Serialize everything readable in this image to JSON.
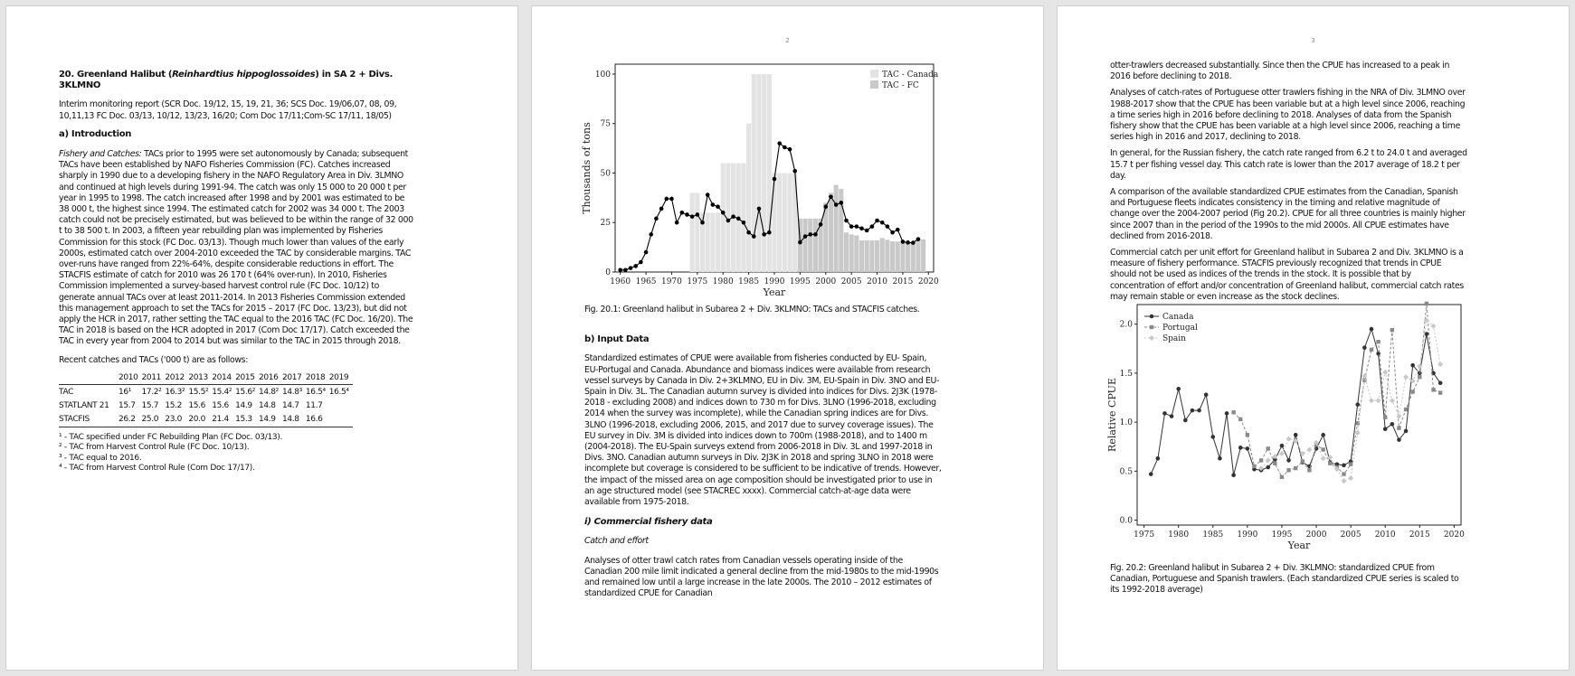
{
  "page1": {
    "title_prefix": "20. Greenland Halibut (",
    "title_species": "Reinhardtius hippoglossoides",
    "title_suffix": ") in SA 2 + Divs. 3KLMNO",
    "report_ref": "Interim monitoring report (SCR Doc. 19/12, 15, 19, 21, 36; SCS Doc. 19/06,07, 08, 09, 10,11,13 FC Doc. 03/13, 10/12, 13/23, 16/20; Com Doc 17/11;Com-SC 17/11, 18/05)",
    "intro_heading": "a) Introduction",
    "fishery_label": "Fishery and Catches:",
    "fishery_text": " TACs prior to 1995 were set autonomously by Canada; subsequent TACs have been established by NAFO Fisheries Commission (FC). Catches increased sharply in 1990 due to a developing fishery in the NAFO Regulatory Area in Div. 3LMNO and continued at high levels during 1991-94. The catch was only 15 000 to 20 000 t per year in 1995 to 1998. The catch increased after 1998 and by 2001 was estimated to be 38 000 t, the highest since 1994. The estimated catch for 2002 was 34 000 t. The 2003 catch could not be precisely estimated, but was believed to be within the range of 32 000 t to 38 500 t. In 2003, a fifteen year rebuilding plan was implemented by Fisheries Commission for this stock (FC Doc. 03/13). Though much lower than values of the early 2000s, estimated catch over 2004-2010 exceeded the TAC by considerable margins. TAC over-runs have ranged from 22%-64%, despite considerable reductions in effort. The STACFIS estimate of catch for 2010 was 26 170 t (64% over-run). In 2010, Fisheries Commission implemented a survey-based harvest control rule (FC Doc. 10/12) to generate annual TACs over at least 2011-2014. In 2013 Fisheries Commission extended this management approach to set the TACs for 2015 – 2017 (FC Doc. 13/23), but did not apply the HCR in 2017, rather setting the TAC equal to the 2016 TAC (FC Doc. 16/20). The TAC in 2018 is based on the HCR adopted in 2017 (Com Doc 17/17). Catch exceeded the TAC in every year from 2004 to 2014 but was similar to the TAC in 2015 through 2018.",
    "recent_label": "Recent catches and TACs ('000 t) are as follows:",
    "table": {
      "headers": [
        "",
        "2010",
        "2011",
        "2012",
        "2013",
        "2014",
        "2015",
        "2016",
        "2017",
        "2018",
        "2019"
      ],
      "rows": [
        [
          "TAC",
          "16¹",
          "17.2²",
          "16.3²",
          "15.5²",
          "15.4²",
          "15.6²",
          "14.8²",
          "14.8³",
          "16.5⁴",
          "16.5⁴"
        ],
        [
          "STATLANT 21",
          "15.7",
          "15.7",
          "15.2",
          "15.6",
          "15.6",
          "14.9",
          "14.8",
          "14.7",
          "11.7",
          ""
        ],
        [
          "STACFIS",
          "26.2",
          "25.0",
          "23.0",
          "20.0",
          "21.4",
          "15.3",
          "14.9",
          "14.8",
          "16.6",
          ""
        ]
      ]
    },
    "footnotes": [
      "¹ - TAC specified under FC Rebuilding Plan (FC Doc. 03/13).",
      "² - TAC from Harvest Control Rule (FC Doc. 10/13).",
      "³ - TAC equal to 2016.",
      "⁴ - TAC from Harvest Control Rule (Com Doc 17/17)."
    ]
  },
  "page2": {
    "page_number": "2",
    "fig1_caption": "Fig. 20.1: Greenland halibut in Subarea 2 + Div. 3KLMNO: TACs and STACFIS catches.",
    "input_heading": "b) Input Data",
    "input_text": "Standardized estimates of CPUE were available from fisheries conducted by EU- Spain, EU-Portugal and Canada. Abundance and biomass indices were available from research vessel surveys by Canada in Div. 2+3KLMNO, EU in Div. 3M, EU-Spain in Div. 3NO and EU-Spain in Div. 3L. The Canadian autumn survey is divided into indices for Divs. 2J3K (1978-2018 - excluding 2008) and indices down to 730 m for Divs. 3LNO (1996-2018, excluding 2014 when the survey was incomplete), while the Canadian spring indices are for Divs. 3LNO (1996-2018, excluding 2006, 2015, and 2017 due to survey coverage issues). The EU survey in Div. 3M is divided into indices down to 700m (1988-2018), and to 1400 m (2004-2018). The EU-Spain surveys extend from 2006-2018 in Div. 3L and 1997-2018 in Divs. 3NO. Canadian autumn surveys in Div. 2J3K in 2018 and spring 3LNO in 2018 were incomplete but coverage is considered to be sufficient to be indicative of trends. However, the impact of the missed area on age composition should be investigated prior to use in an age structured model (see STACREC xxxx). Commercial catch-at-age data were available from 1975-2018.",
    "commercial_heading": "i) Commercial fishery data",
    "catch_effort_heading": "Catch and effort",
    "catch_effort_text": "Analyses of otter trawl catch rates from Canadian vessels operating inside of the Canadian 200 mile limit indicated a general decline from the mid-1980s to the mid-1990s and remained low until a large increase in the late 2000s. The 2010 – 2012 estimates of standardized CPUE for Canadian"
  },
  "page3": {
    "page_number": "3",
    "para1": "otter-trawlers decreased substantially. Since then the CPUE has increased to a peak in 2016 before declining to 2018.",
    "para2": "Analyses of catch-rates of Portuguese otter trawlers fishing in the NRA of Div. 3LMNO over 1988-2017 show that the CPUE has been variable but at a high level since 2006, reaching a time series high in 2016 before declining to 2018. Analyses of data from the Spanish fishery show that the CPUE has been variable at a high level since 2006, reaching a time series high in 2016 and 2017, declining to 2018.",
    "para3": "In general, for the Russian fishery, the catch rate ranged from 6.2 t to 24.0 t and averaged 15.7 t per fishing vessel day. This catch rate is lower than the 2017 average of 18.2 t per day.",
    "para4": "A comparison of the available standardized CPUE estimates from the Canadian, Spanish and Portuguese fleets indicates consistency in the timing and relative magnitude of change over the 2004-2007 period (Fig 20.2). CPUE for all three countries is mainly higher since 2007 than in the period of the 1990s to the mid 2000s. All CPUE estimates have declined from 2016-2018.",
    "para5": "Commercial catch per unit effort for Greenland halibut in Subarea 2 and Div. 3KLMNO is a measure of fishery performance. STACFIS previously recognized that trends in CPUE should not be used as indices of the trends in the stock. It is possible that by concentration of effort and/or concentration of Greenland halibut, commercial catch rates may remain stable or even increase as the stock declines.",
    "fig2_caption": "Fig. 20.2: Greenland halibut in Subarea 2 + Div. 3KLMNO: standardized CPUE from Canadian, Portuguese and Spanish trawlers. (Each standardized CPUE series is scaled to its 1992-2018 average)"
  },
  "chart_data": [
    {
      "type": "bar",
      "title": "",
      "xlabel": "Year",
      "ylabel": "Thousands of tons",
      "xlim": [
        1959,
        2021
      ],
      "ylim": [
        0,
        105
      ],
      "xticks": [
        1960,
        1965,
        1970,
        1975,
        1980,
        1985,
        1990,
        1995,
        2000,
        2005,
        2010,
        2015,
        2020
      ],
      "yticks": [
        0,
        25,
        50,
        75,
        100
      ],
      "legend_position": "top-right",
      "colors": {
        "tac_canada": "#e3e3e3",
        "tac_fc": "#c9c9c9",
        "catch": "#000000"
      },
      "series": [
        {
          "name": "TAC - Canada",
          "x": [
            1974,
            1975,
            1976,
            1977,
            1978,
            1979,
            1980,
            1981,
            1982,
            1983,
            1984,
            1985,
            1986,
            1987,
            1988,
            1989,
            1990,
            1991,
            1992,
            1993,
            1994
          ],
          "values": [
            40,
            40,
            30,
            30,
            30,
            30,
            55,
            55,
            55,
            55,
            55,
            75,
            100,
            100,
            100,
            100,
            50,
            50,
            50,
            50,
            50
          ]
        },
        {
          "name": "TAC - FC",
          "x": [
            1995,
            1996,
            1997,
            1998,
            1999,
            2000,
            2001,
            2002,
            2003,
            2004,
            2005,
            2006,
            2007,
            2008,
            2009,
            2010,
            2011,
            2012,
            2013,
            2014,
            2015,
            2016,
            2017,
            2018,
            2019
          ],
          "values": [
            27,
            27,
            27,
            27,
            27,
            35,
            40,
            44,
            42,
            20,
            19,
            18.5,
            16,
            16,
            16,
            16,
            17.2,
            16.3,
            15.5,
            15.4,
            15.6,
            14.8,
            14.8,
            16.5,
            16.5
          ]
        },
        {
          "name": "Catch",
          "type": "line",
          "x": [
            1960,
            1961,
            1962,
            1963,
            1964,
            1965,
            1966,
            1967,
            1968,
            1969,
            1970,
            1971,
            1972,
            1973,
            1974,
            1975,
            1976,
            1977,
            1978,
            1979,
            1980,
            1981,
            1982,
            1983,
            1984,
            1985,
            1986,
            1987,
            1988,
            1989,
            1990,
            1991,
            1992,
            1993,
            1994,
            1995,
            1996,
            1997,
            1998,
            1999,
            2000,
            2001,
            2002,
            2003,
            2004,
            2005,
            2006,
            2007,
            2008,
            2009,
            2010,
            2011,
            2012,
            2013,
            2014,
            2015,
            2016,
            2017,
            2018
          ],
          "values": [
            1,
            1,
            2,
            3,
            5,
            10,
            19,
            27,
            32,
            37,
            37,
            25,
            30,
            29,
            28,
            29,
            25,
            39,
            34,
            33,
            30,
            26,
            28,
            27,
            25,
            20,
            18,
            32,
            19,
            20,
            47,
            65,
            63,
            62,
            51,
            15,
            18,
            19,
            19,
            24,
            33,
            38,
            34,
            35,
            26,
            23,
            23,
            22,
            21,
            23,
            26,
            25,
            23,
            20,
            21.4,
            15.3,
            14.9,
            14.8,
            16.6
          ]
        }
      ]
    },
    {
      "type": "line",
      "title": "",
      "xlabel": "Year",
      "ylabel": "Relative CPUE",
      "xlim": [
        1974,
        2021
      ],
      "ylim": [
        -0.05,
        2.2
      ],
      "xticks": [
        1975,
        1980,
        1985,
        1990,
        1995,
        2000,
        2005,
        2010,
        2015,
        2020
      ],
      "yticks": [
        0.0,
        0.5,
        1.0,
        1.5,
        2.0
      ],
      "legend_position": "top-left",
      "series": [
        {
          "name": "Canada",
          "color": "#333333",
          "x": [
            1976,
            1977,
            1978,
            1979,
            1980,
            1981,
            1982,
            1983,
            1984,
            1985,
            1986,
            1987,
            1988,
            1989,
            1990,
            1991,
            1992,
            1993,
            1994,
            1995,
            1996,
            1997,
            1998,
            1999,
            2000,
            2001,
            2002,
            2003,
            2004,
            2005,
            2006,
            2007,
            2008,
            2009,
            2010,
            2011,
            2012,
            2013,
            2014,
            2015,
            2016,
            2017,
            2018
          ],
          "values": [
            0.47,
            0.63,
            1.09,
            1.06,
            1.34,
            1.02,
            1.12,
            1.12,
            1.28,
            0.85,
            0.63,
            1.09,
            0.46,
            0.74,
            0.73,
            0.52,
            0.51,
            0.54,
            0.62,
            0.76,
            0.61,
            0.87,
            0.59,
            0.55,
            0.73,
            0.87,
            0.59,
            0.57,
            0.56,
            0.6,
            1.18,
            1.76,
            1.95,
            1.7,
            0.93,
            0.98,
            0.82,
            0.91,
            1.58,
            1.5,
            1.9,
            1.5,
            1.4
          ]
        },
        {
          "name": "Portugal",
          "color": "#8a8a8a",
          "x": [
            1988,
            1989,
            1990,
            1991,
            1992,
            1993,
            1994,
            1995,
            1996,
            1997,
            1998,
            1999,
            2000,
            2001,
            2002,
            2003,
            2004,
            2005,
            2006,
            2007,
            2008,
            2009,
            2010,
            2011,
            2012,
            2013,
            2014,
            2015,
            2016,
            2017,
            2018
          ],
          "values": [
            1.1,
            1.03,
            0.87,
            0.55,
            0.61,
            0.73,
            0.58,
            0.44,
            0.51,
            0.53,
            0.6,
            0.51,
            0.77,
            0.72,
            0.58,
            0.54,
            0.47,
            0.57,
            0.99,
            1.43,
            1.74,
            1.82,
            1.05,
            1.94,
            0.94,
            1.13,
            1.31,
            1.46,
            2.21,
            1.33,
            1.3
          ]
        },
        {
          "name": "Spain",
          "color": "#c8c8c8",
          "x": [
            1992,
            1993,
            1994,
            1995,
            1996,
            1997,
            1998,
            1999,
            2000,
            2001,
            2002,
            2003,
            2004,
            2005,
            2006,
            2007,
            2008,
            2009,
            2010,
            2011,
            2012,
            2013,
            2014,
            2015,
            2016,
            2017,
            2018
          ],
          "values": [
            0.53,
            0.61,
            0.65,
            0.68,
            0.83,
            0.81,
            0.68,
            0.72,
            0.79,
            0.63,
            0.64,
            0.52,
            0.4,
            0.43,
            0.89,
            1.47,
            1.22,
            1.22,
            1.51,
            1.22,
            1.06,
            1.46,
            1.42,
            1.57,
            2.04,
            1.98,
            1.59
          ]
        }
      ]
    }
  ]
}
